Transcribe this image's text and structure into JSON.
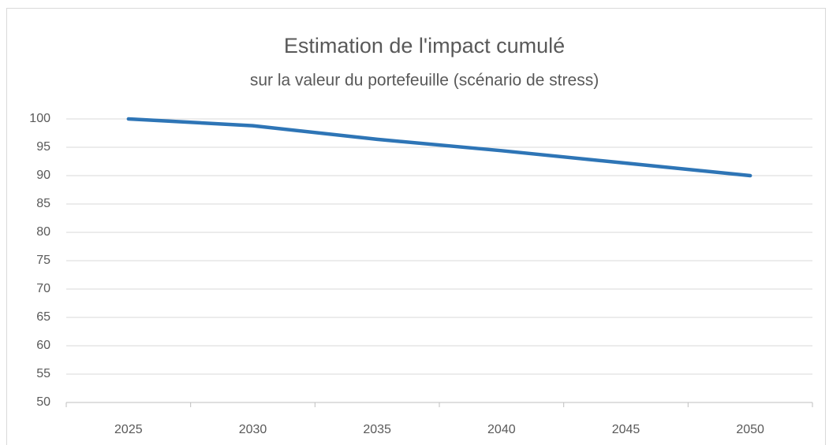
{
  "chart_data": {
    "type": "line",
    "title": "Estimation de l'impact cumulé",
    "subtitle": "sur la valeur du portefeuille (scénario de stress)",
    "categories": [
      "2025",
      "2030",
      "2035",
      "2040",
      "2045",
      "2050"
    ],
    "series": [
      {
        "color": "#2e75b6",
        "values": [
          100,
          98.8,
          96.4,
          94.4,
          92.2,
          90
        ]
      }
    ],
    "ylim": [
      50,
      100
    ],
    "yticks": [
      50,
      55,
      60,
      65,
      70,
      75,
      80,
      85,
      90,
      95,
      100
    ],
    "grid": true
  }
}
